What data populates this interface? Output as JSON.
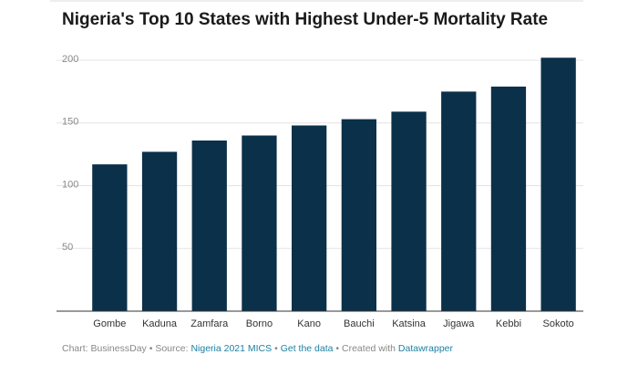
{
  "chart_data": {
    "type": "bar",
    "title": "Nigeria's Top 10 States with Highest Under-5 Mortality Rate",
    "categories": [
      "Gombe",
      "Kaduna",
      "Zamfara",
      "Borno",
      "Kano",
      "Bauchi",
      "Katsina",
      "Jigawa",
      "Kebbi",
      "Sokoto"
    ],
    "values": [
      117,
      127,
      136,
      140,
      148,
      153,
      159,
      175,
      179,
      202
    ],
    "color": "#0b3049",
    "ylim": [
      0,
      200
    ],
    "yticks": [
      50,
      100,
      150,
      200
    ],
    "grid": true
  },
  "footer": {
    "chart": "Chart: BusinessDay",
    "separator": "•",
    "source_label": "Source:",
    "source_link": "Nigeria 2021 MICS",
    "get_data": "Get the data",
    "created_label": "Created with",
    "created_link": "Datawrapper"
  }
}
